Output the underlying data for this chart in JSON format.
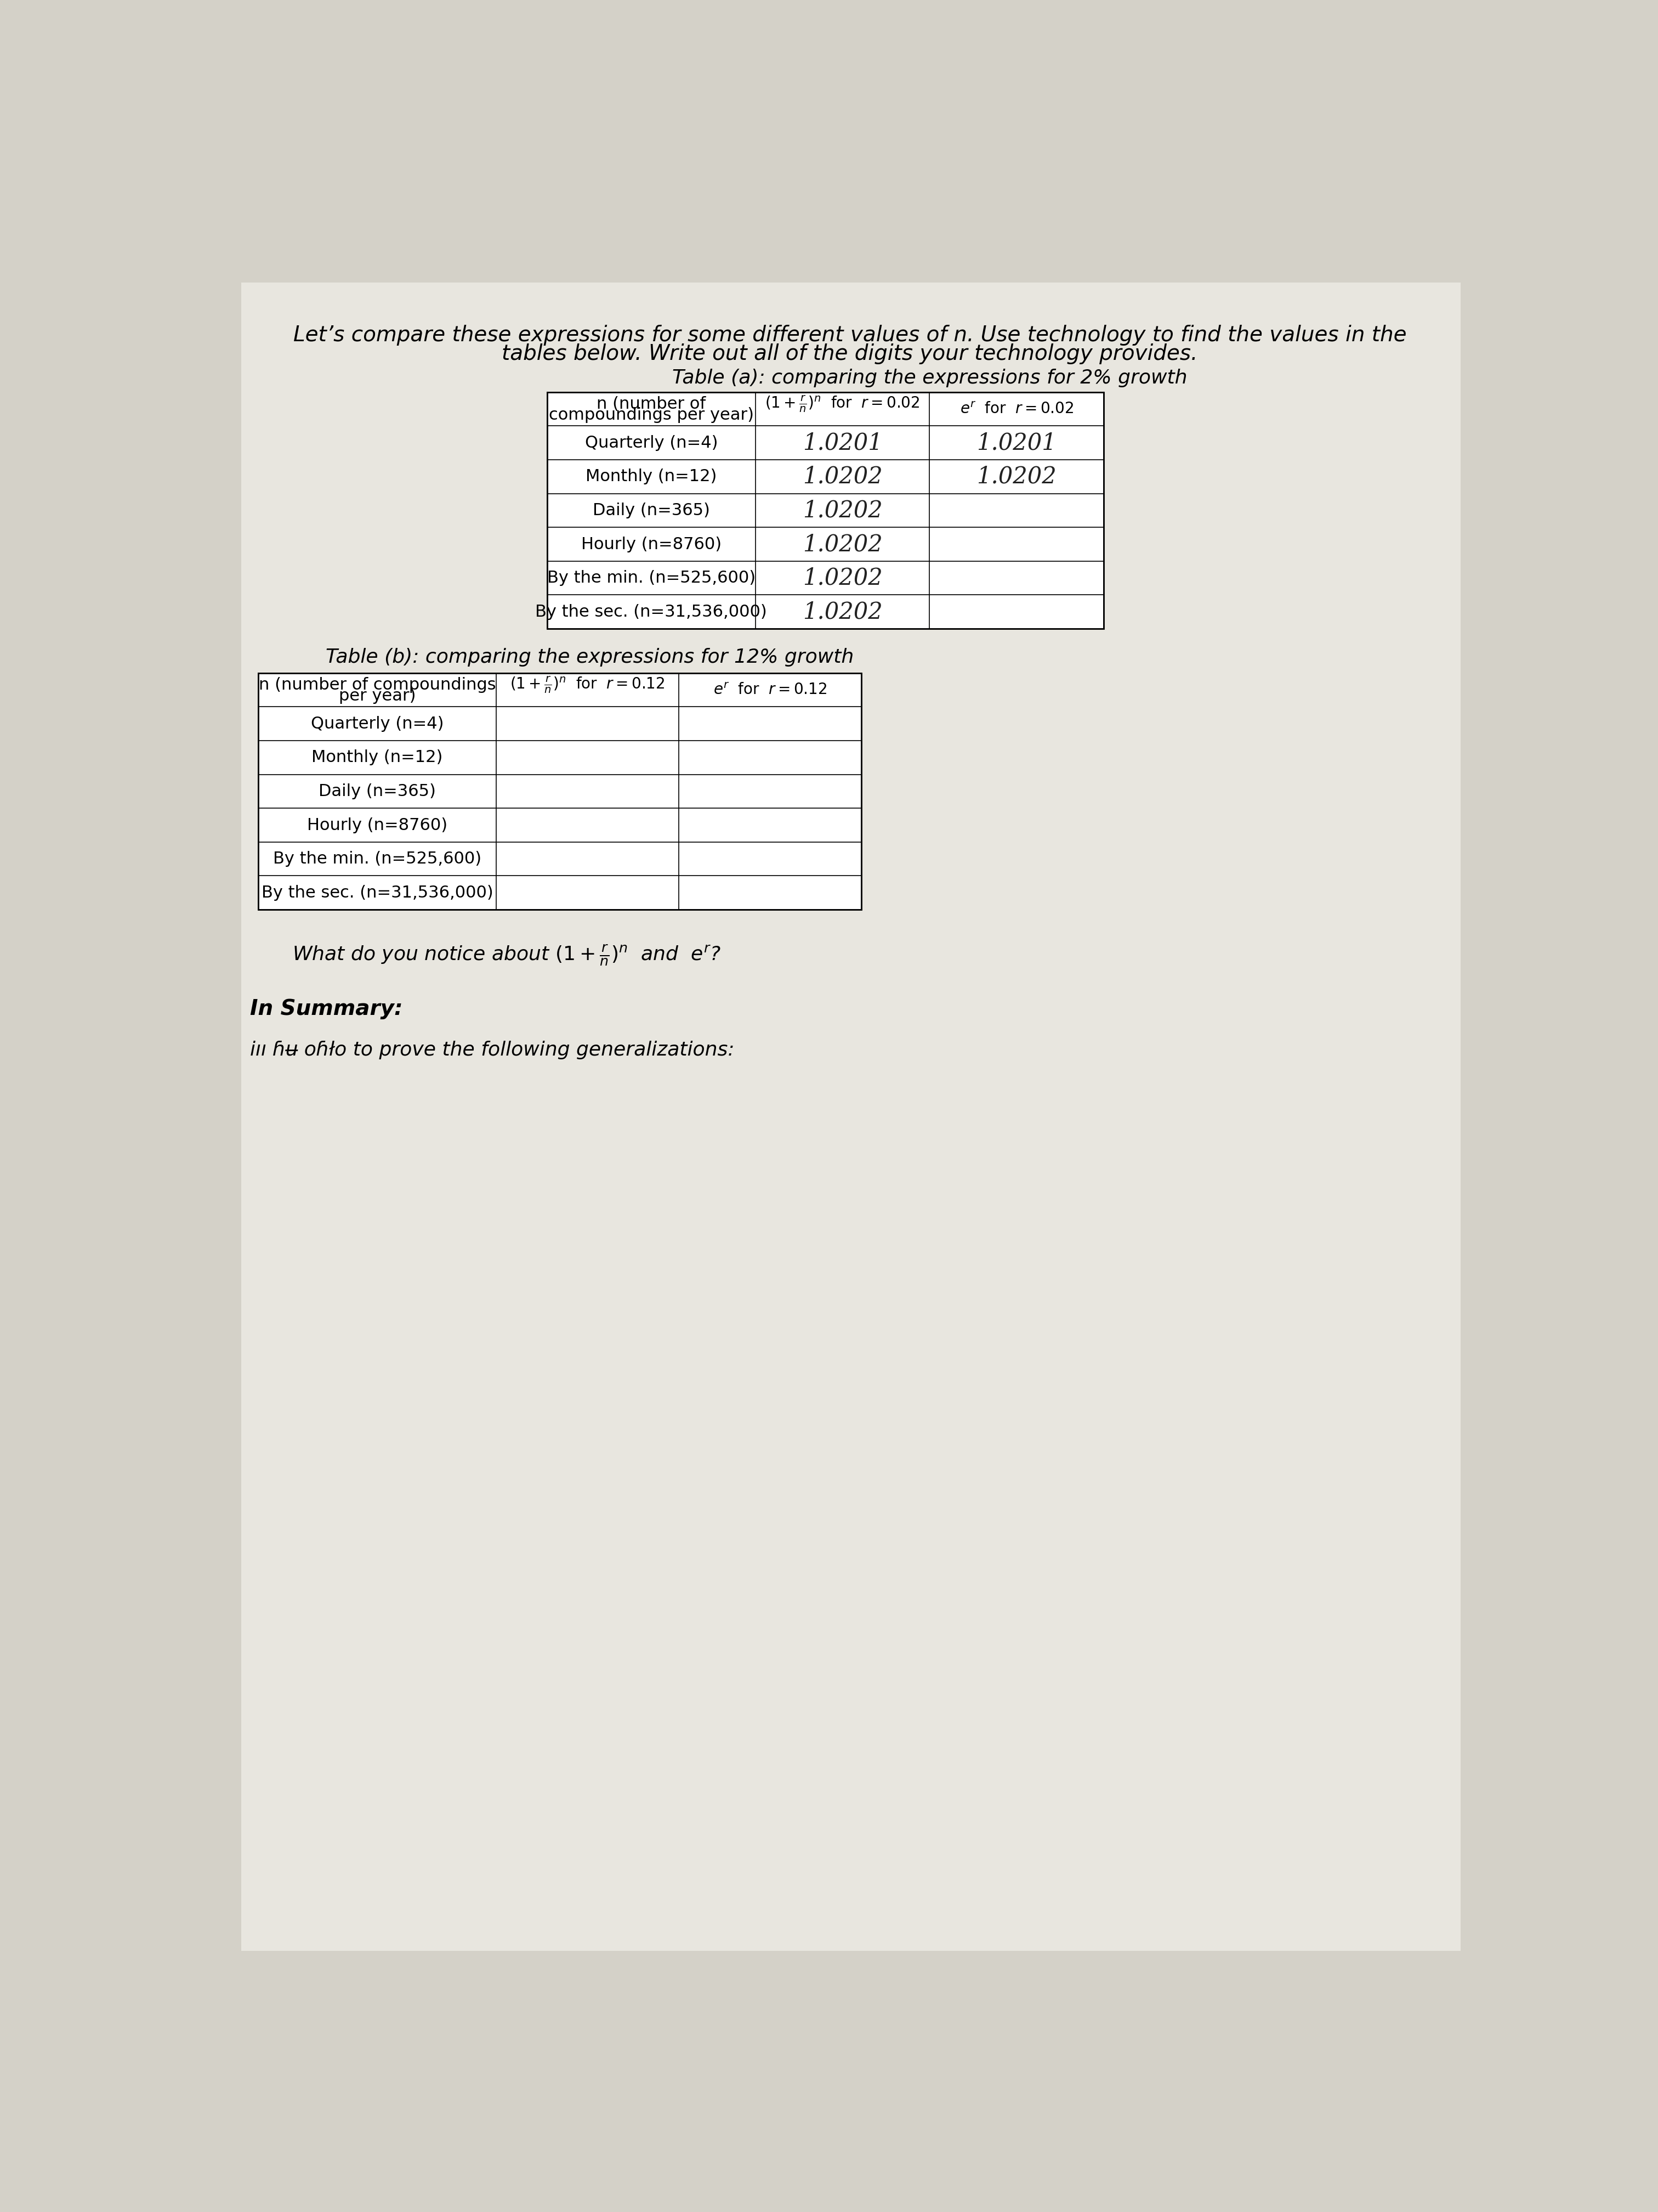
{
  "intro_line1": "Let’s compare these expressions for some different values of n. Use technology to find the values in the",
  "intro_line2": "tables below. Write out all of the digits your technology provides.",
  "table_a_title": "Table (a): comparing the expressions for 2% growth",
  "table_a_col1_header": "n (number of\ncompoundings per year)",
  "table_a_col2_header_line1": "(1 + r/n)ⁿ for r = 0.02",
  "table_a_col3_header_line1": "eʳ for r = 0.02",
  "table_a_rows": [
    "Quarterly (n=4)",
    "Monthly (n=12)",
    "Daily (n=365)",
    "Hourly (n=8760)",
    "By the min. (n=525,600)",
    "By the sec. (n=31,536,000)"
  ],
  "hw_col2_a": [
    "1.0201",
    "1.0202",
    "1.0202",
    "1.0202",
    "1.0202",
    "1.0202"
  ],
  "hw_col3_a_rows": [
    0,
    1
  ],
  "hw_col3_a": [
    "1.0201",
    "1.0202"
  ],
  "table_b_title": "Table (b): comparing the expressions for 12% growth",
  "table_b_col1_header": "n (number of compoundings\nper year)",
  "table_b_col2_header_line1": "(1 + r/n)ⁿ for r = 0.12",
  "table_b_col3_header_line1": "eʳ for r = 0.12",
  "table_b_rows": [
    "Quarterly (n=4)",
    "Monthly (n=12)",
    "Daily (n=365)",
    "Hourly (n=8760)",
    "By the min. (n=525,600)",
    "By the sec. (n=31,536,000)"
  ],
  "notice_text": "What do you notice about (1 + r/n)ⁿ and eʳ?",
  "summary_text": "In Summary:",
  "bottom_text": "iıı ɦʉ oɦło to prove the following generalizations:",
  "bg_color": "#d4d1c8",
  "paper_color": "#e8e6df"
}
